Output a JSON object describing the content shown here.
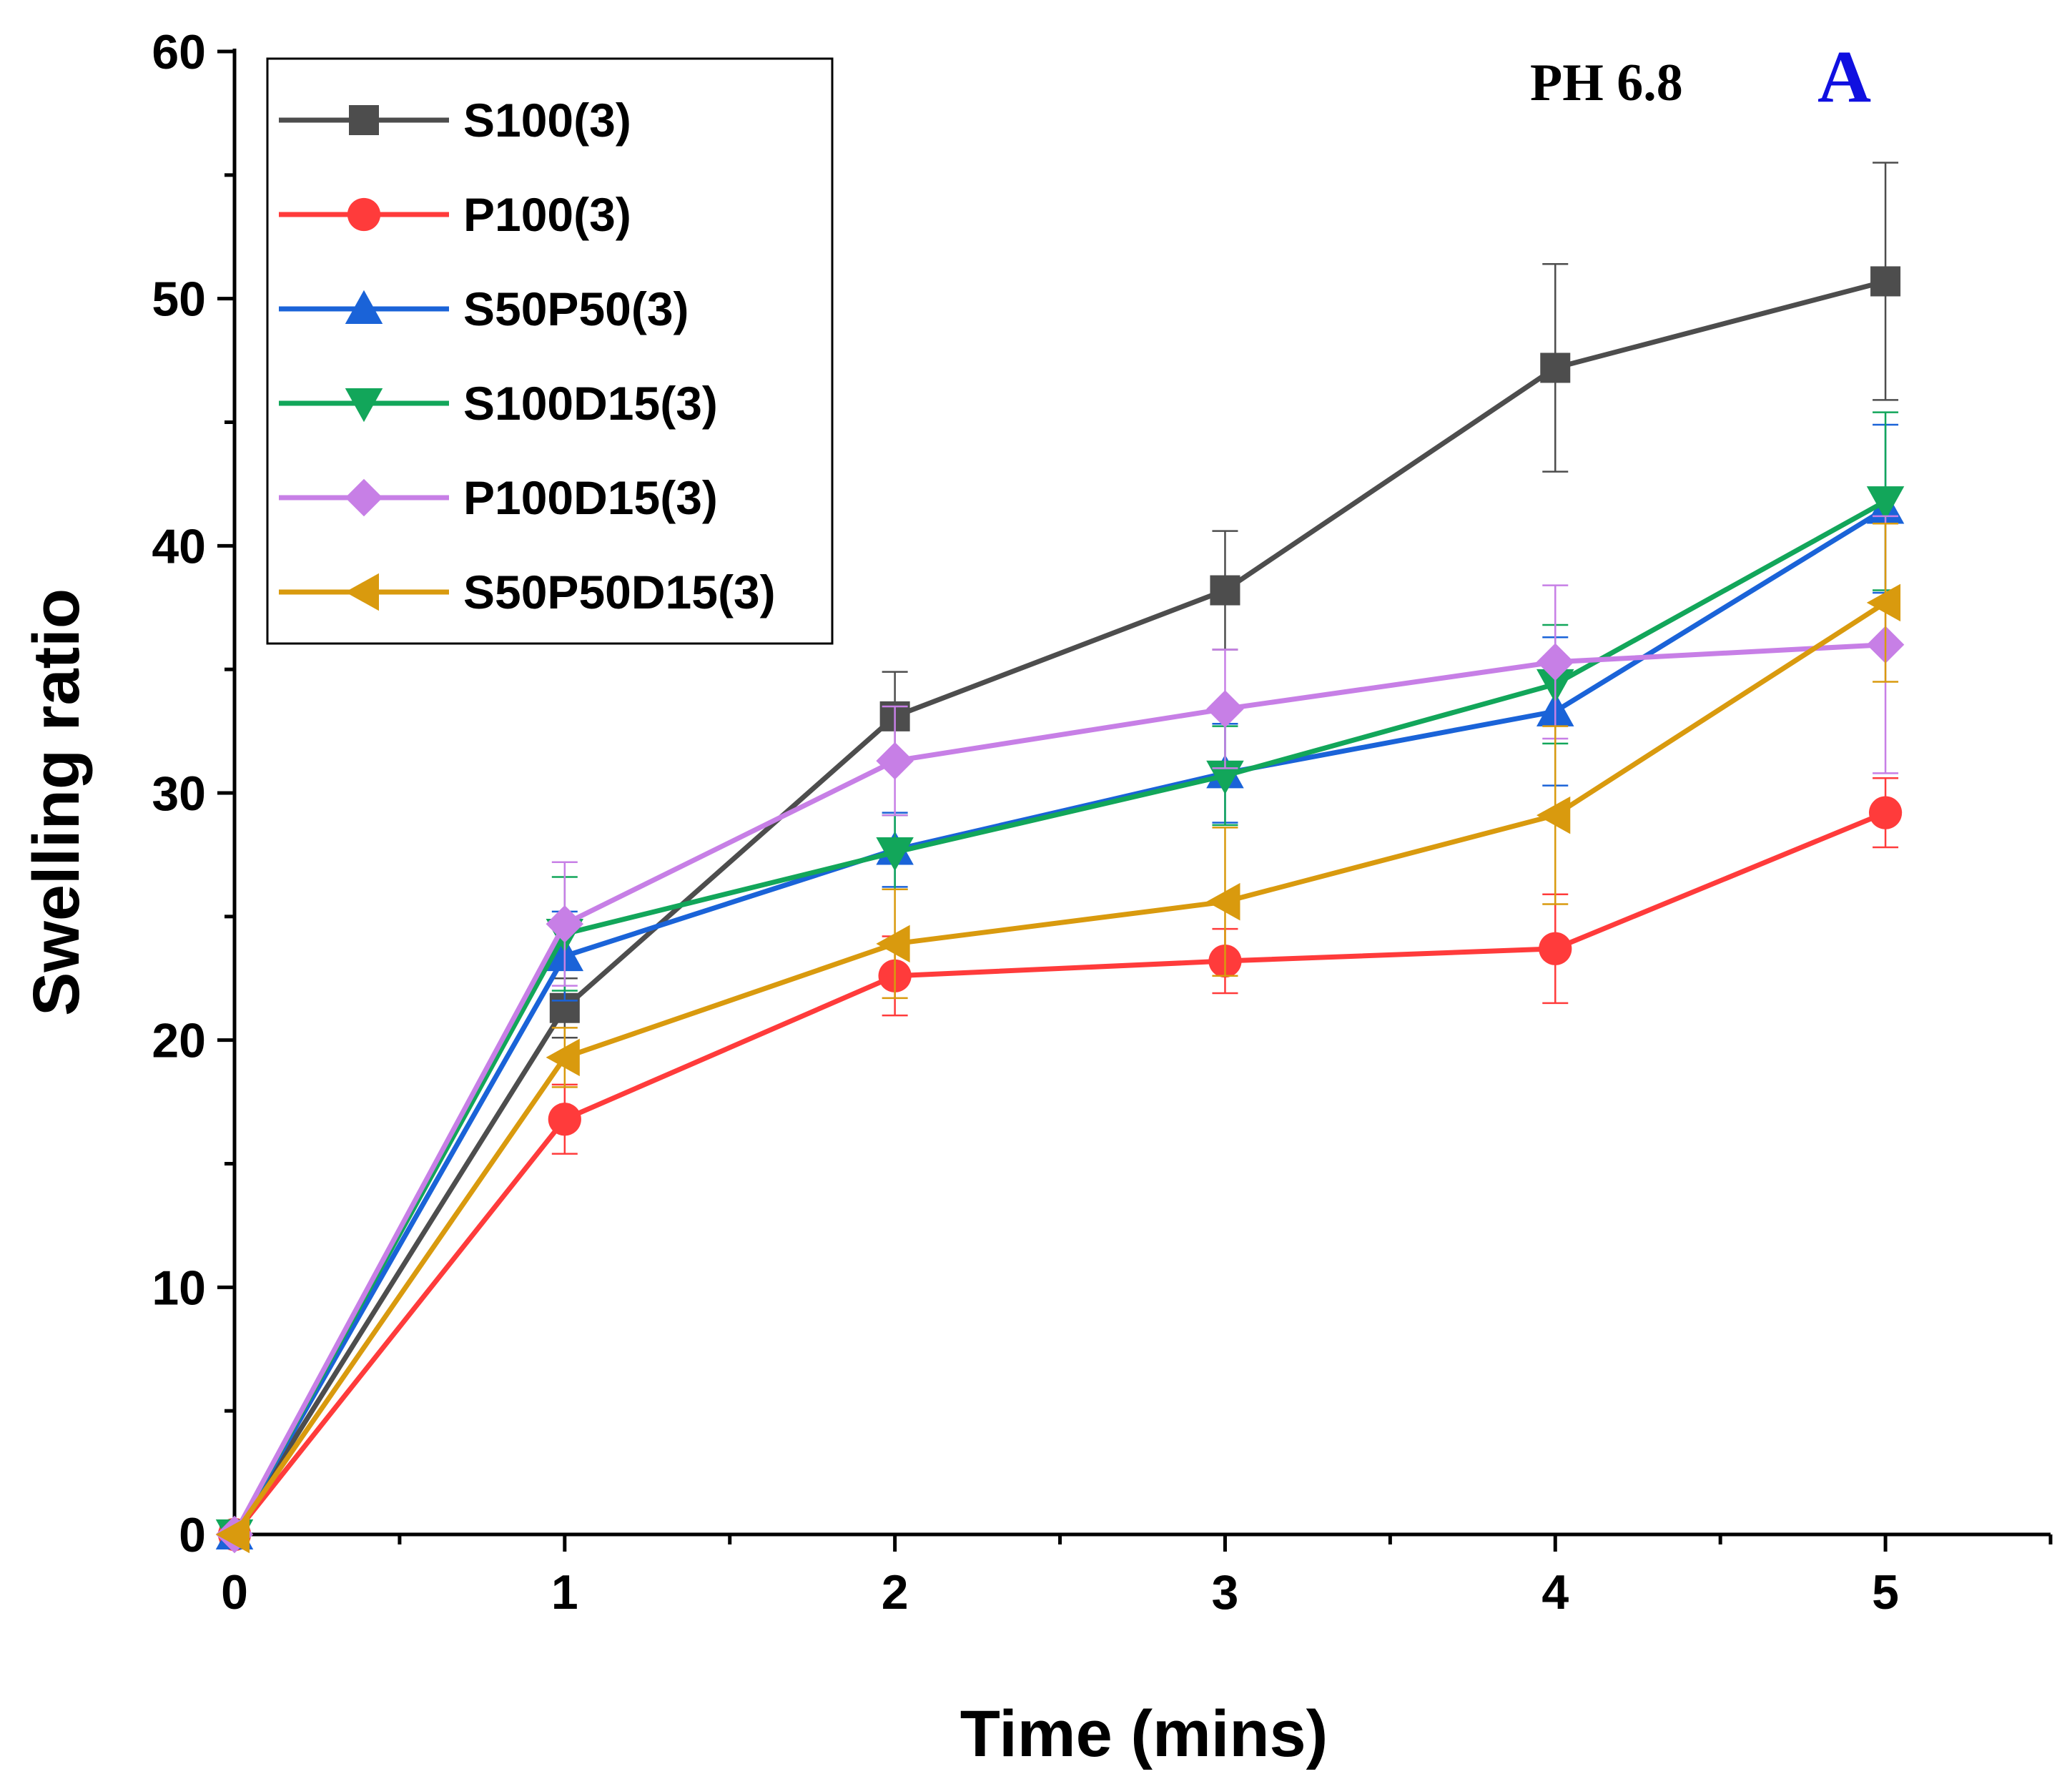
{
  "chart_data": {
    "type": "line",
    "xlabel": "Time (mins)",
    "ylabel": "Swelling ratio",
    "xlim": [
      0,
      5.5
    ],
    "ylim": [
      0,
      60
    ],
    "x_ticks": [
      "0",
      "1",
      "2",
      "3",
      "4",
      "5"
    ],
    "y_ticks": [
      "0",
      "10",
      "20",
      "30",
      "40",
      "50",
      "60"
    ],
    "annotations": {
      "condition": "PH 6.8",
      "panel": "A"
    },
    "legend_position": "top-left",
    "x": [
      0,
      1,
      2,
      3,
      4,
      5
    ],
    "series": [
      {
        "name": "S100(3)",
        "color": "#4d4d4d",
        "marker": "square",
        "values": [
          0,
          21.3,
          33.1,
          38.2,
          47.2,
          50.7
        ],
        "errors": [
          0,
          1.2,
          1.8,
          2.4,
          4.2,
          4.8
        ]
      },
      {
        "name": "P100(3)",
        "color": "#ff3b3b",
        "marker": "circle",
        "values": [
          0,
          16.8,
          22.6,
          23.2,
          23.7,
          29.2
        ],
        "errors": [
          0,
          1.4,
          1.6,
          1.3,
          2.2,
          1.4
        ]
      },
      {
        "name": "S50P50(3)",
        "color": "#1a63d8",
        "marker": "triangle-up",
        "values": [
          0,
          23.4,
          27.7,
          30.8,
          33.3,
          41.5
        ],
        "errors": [
          0,
          1.8,
          1.5,
          2.0,
          3.0,
          3.4
        ]
      },
      {
        "name": "S100D15(3)",
        "color": "#12a65a",
        "marker": "triangle-down",
        "values": [
          0,
          24.3,
          27.6,
          30.7,
          34.4,
          41.8
        ],
        "errors": [
          0,
          2.3,
          1.5,
          2.0,
          2.4,
          3.6
        ]
      },
      {
        "name": "P100D15(3)",
        "color": "#c77fe6",
        "marker": "diamond",
        "values": [
          0,
          24.7,
          31.3,
          33.4,
          35.3,
          36.0
        ],
        "errors": [
          0,
          2.5,
          2.2,
          2.4,
          3.1,
          5.2
        ]
      },
      {
        "name": "S50P50D15(3)",
        "color": "#d99a0e",
        "marker": "triangle-left",
        "values": [
          0,
          19.3,
          23.9,
          25.6,
          29.1,
          37.7
        ],
        "errors": [
          0,
          1.2,
          2.2,
          3.0,
          3.6,
          3.2
        ]
      }
    ]
  }
}
